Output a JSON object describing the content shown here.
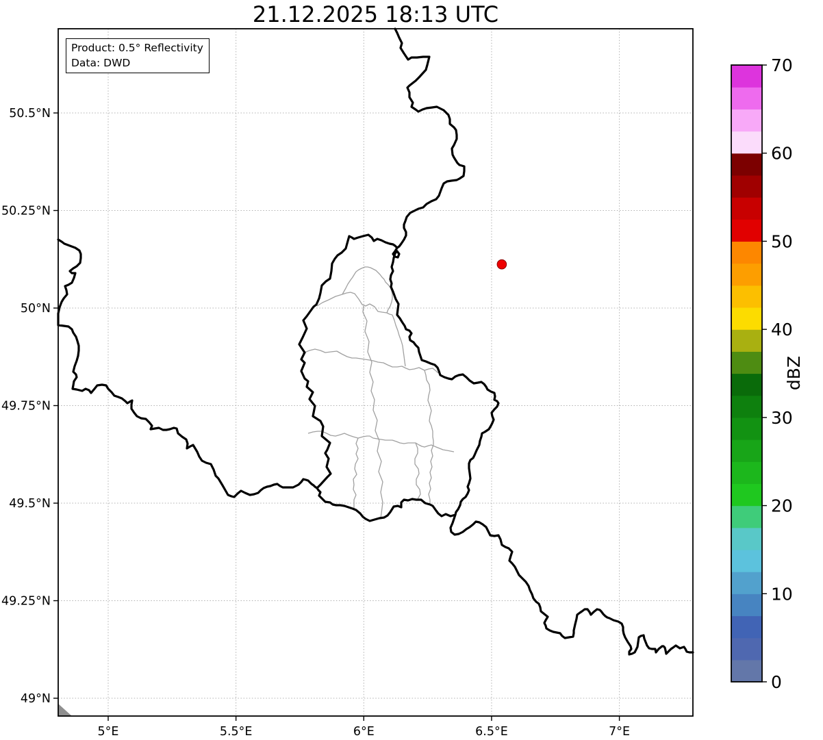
{
  "title": "21.12.2025 18:13 UTC",
  "info_box": {
    "line1": "Product: 0.5° Reflectivity",
    "line2": "Data: DWD"
  },
  "x_axis": {
    "ticks": [
      {
        "label": "5°E",
        "lon": 5.0
      },
      {
        "label": "5.5°E",
        "lon": 5.5
      },
      {
        "label": "6°E",
        "lon": 6.0
      },
      {
        "label": "6.5°E",
        "lon": 6.5
      },
      {
        "label": "7°E",
        "lon": 7.0
      }
    ]
  },
  "y_axis": {
    "ticks": [
      {
        "label": "49°N",
        "lat": 49.0
      },
      {
        "label": "49.25°N",
        "lat": 49.25
      },
      {
        "label": "49.5°N",
        "lat": 49.5
      },
      {
        "label": "49.75°N",
        "lat": 49.75
      },
      {
        "label": "50°N",
        "lat": 50.0
      },
      {
        "label": "50.25°N",
        "lat": 50.25
      },
      {
        "label": "50.5°N",
        "lat": 50.5
      }
    ]
  },
  "colorbar": {
    "label": "dBZ",
    "min": 0,
    "max": 70,
    "step_dbz": 2.5,
    "tick_values": [
      0,
      10,
      20,
      30,
      40,
      50,
      60,
      70
    ],
    "colors_bottom_to_top": [
      "#6377a9",
      "#4f68b0",
      "#4164b5",
      "#4784c1",
      "#52a1cd",
      "#5cc2dd",
      "#59c8c8",
      "#3fcc7a",
      "#1fc81f",
      "#1cb71c",
      "#18a518",
      "#129212",
      "#0e800e",
      "#0a6b0a",
      "#4e8c12",
      "#a9b011",
      "#fcdc00",
      "#fcbf00",
      "#fd9e00",
      "#fd8700",
      "#e10000",
      "#c80000",
      "#a00000",
      "#7c0000",
      "#fbdcfb",
      "#f8a9f8",
      "#ee6bee",
      "#dd34dd"
    ]
  },
  "radar_marker": {
    "lon": 6.54,
    "lat": 50.112,
    "color": "#ee0000",
    "edge_color": "#8b0000"
  },
  "map_style": {
    "border_color": "#000000",
    "canton_color": "#a0a0a0",
    "grid_color": "#b0b0b0",
    "corner_wedge_color": "#8f8f8f"
  }
}
